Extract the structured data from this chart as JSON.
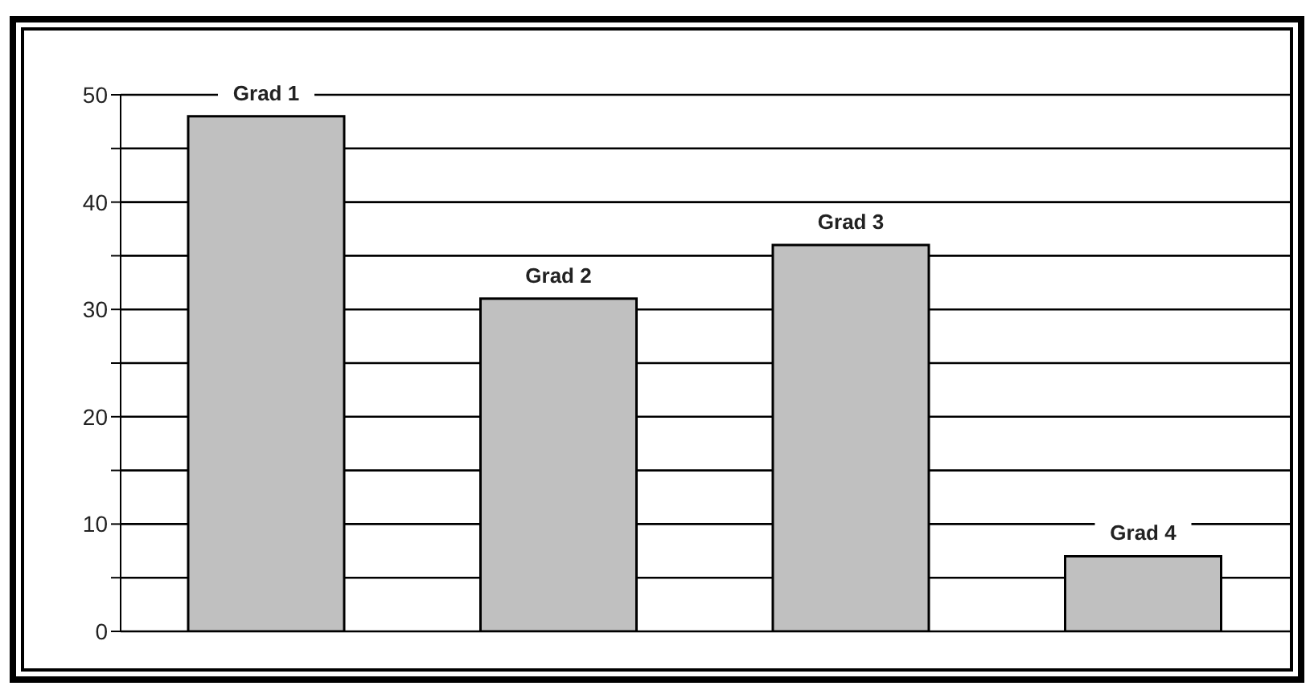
{
  "chart_data": {
    "type": "bar",
    "categories": [
      "Grad 1",
      "Grad 2",
      "Grad 3",
      "Grad 4"
    ],
    "values": [
      48,
      31,
      36,
      7
    ],
    "color": "#c0c0c0",
    "ylim": [
      0,
      50
    ],
    "yticks": [
      0,
      {
        "value": 5,
        "label": null
      },
      10,
      {
        "value": 15,
        "label": null
      },
      20,
      {
        "value": 25,
        "label": null
      },
      30,
      {
        "value": 35,
        "label": null
      },
      40,
      {
        "value": 45,
        "label": null
      },
      50
    ],
    "grid": "y"
  }
}
